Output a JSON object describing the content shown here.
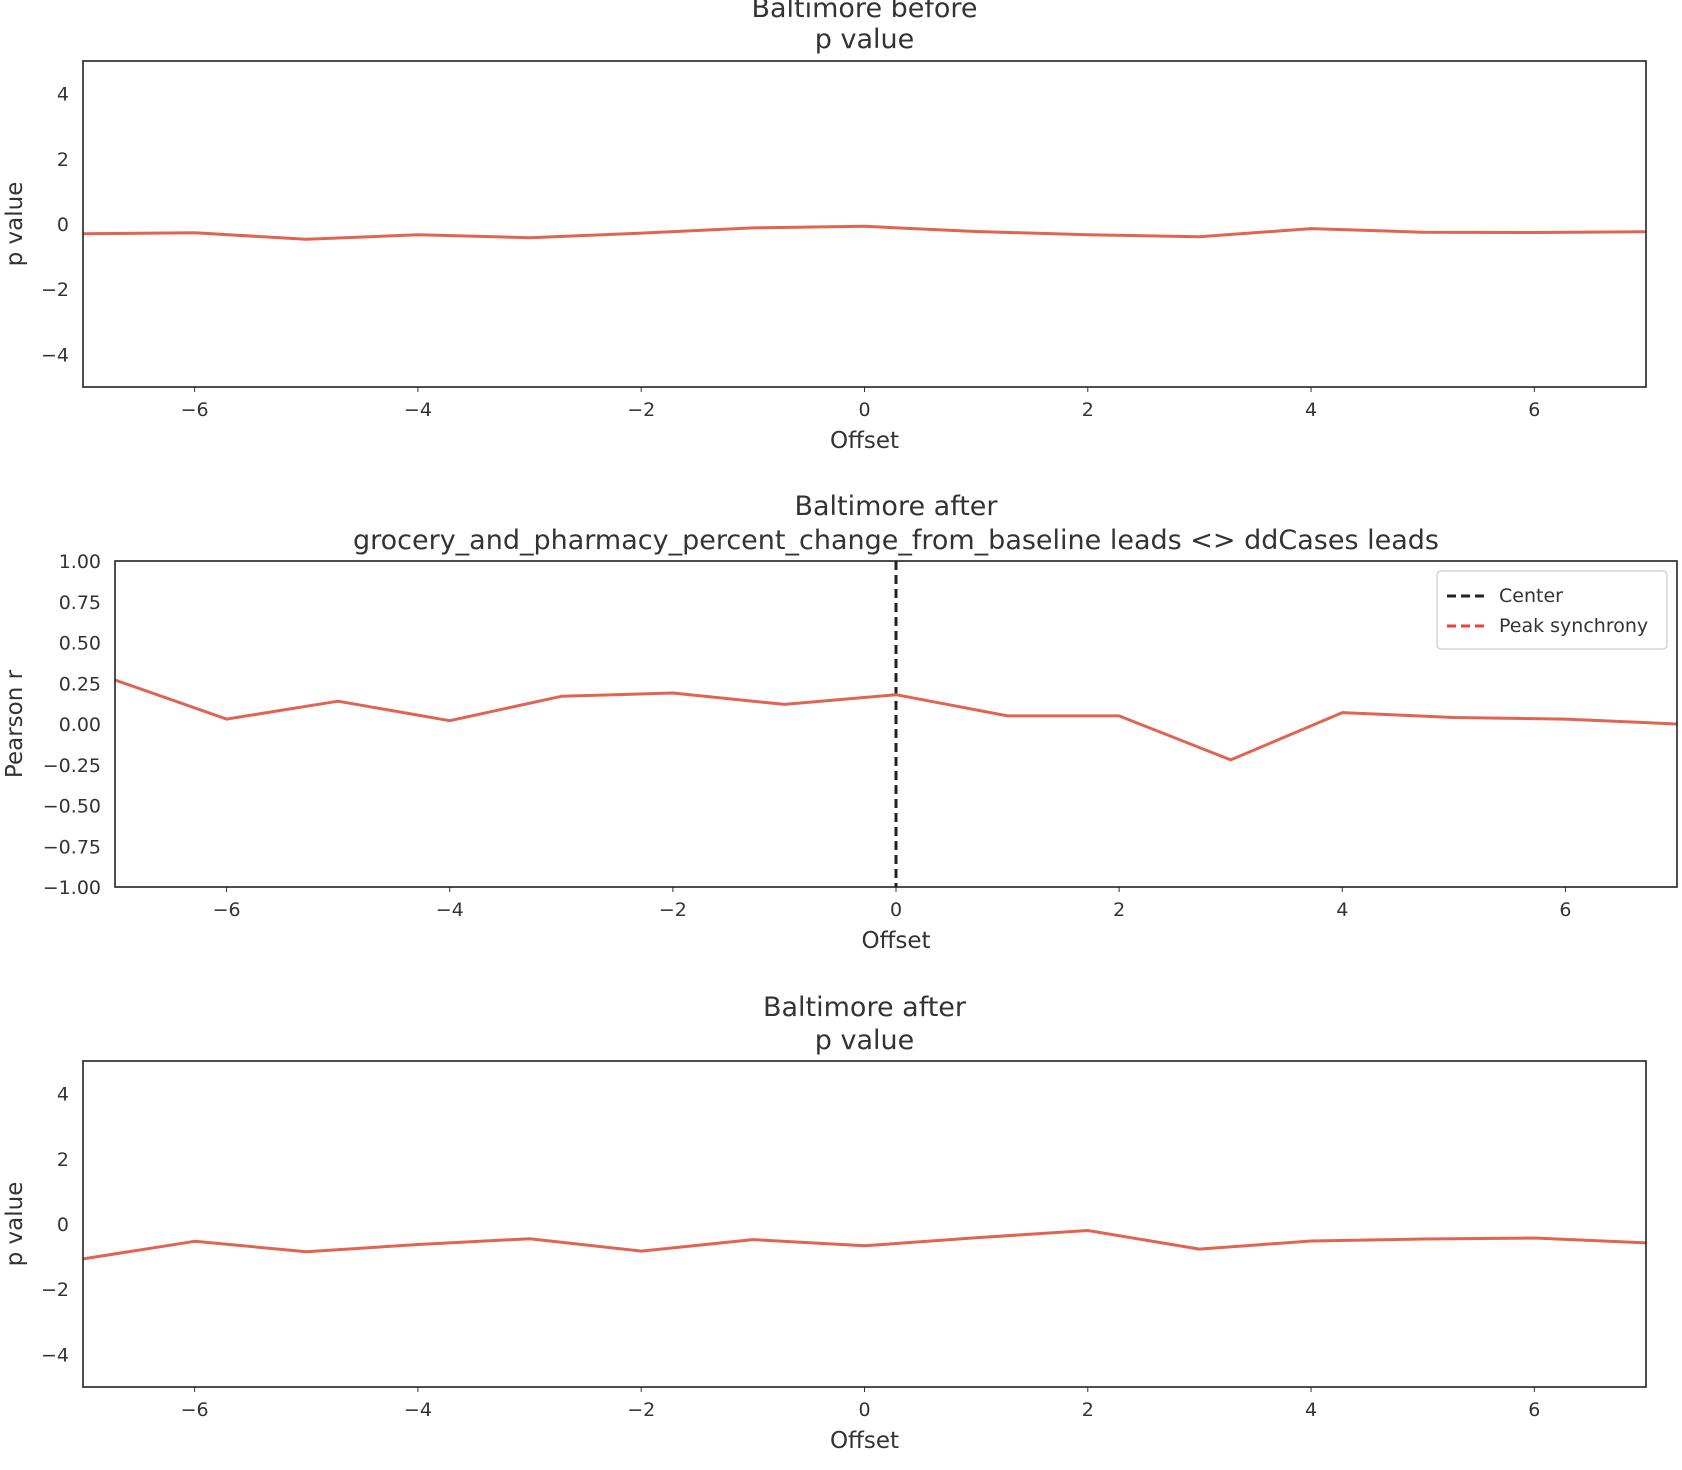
{
  "chart_data": [
    {
      "type": "line",
      "title_lines": [
        "Baltimore before",
        "p value"
      ],
      "xlabel": "Offset",
      "ylabel": "p value",
      "xlim": [
        -7,
        7
      ],
      "ylim": [
        -5,
        5
      ],
      "xticks": [
        -6,
        -4,
        -2,
        0,
        2,
        4,
        6
      ],
      "yticks": [
        -4,
        -2,
        0,
        2,
        4
      ],
      "tick_decimals": 0,
      "color": "#e06452",
      "series": [
        {
          "x": [
            -7,
            -6,
            -5,
            -4,
            -3,
            -2,
            -1,
            0,
            1,
            2,
            3,
            4,
            5,
            6,
            7
          ],
          "values": [
            -0.3,
            -0.27,
            -0.47,
            -0.33,
            -0.42,
            -0.28,
            -0.12,
            -0.07,
            -0.23,
            -0.33,
            -0.39,
            -0.14,
            -0.25,
            -0.26,
            -0.24
          ]
        }
      ],
      "legend": null,
      "center_line": null
    },
    {
      "type": "line",
      "title_lines": [
        "Baltimore after",
        "grocery_and_pharmacy_percent_change_from_baseline leads <> ddCases leads"
      ],
      "xlabel": "Offset",
      "ylabel": "Pearson r",
      "xlim": [
        -7,
        7
      ],
      "ylim": [
        -1,
        1
      ],
      "xticks": [
        -6,
        -4,
        -2,
        0,
        2,
        4,
        6
      ],
      "yticks": [
        -1.0,
        -0.75,
        -0.5,
        -0.25,
        0.0,
        0.25,
        0.5,
        0.75,
        1.0
      ],
      "tick_decimals": 2,
      "color": "#e06452",
      "series": [
        {
          "x": [
            -7,
            -6,
            -5,
            -4,
            -3,
            -2,
            -1,
            0,
            1,
            2,
            3,
            4,
            5,
            6,
            7
          ],
          "values": [
            0.27,
            0.03,
            0.14,
            0.02,
            0.17,
            0.19,
            0.12,
            0.18,
            0.05,
            0.05,
            -0.22,
            0.07,
            0.04,
            0.03,
            0.0
          ]
        }
      ],
      "center_line": {
        "x": 0,
        "color": "#222222"
      },
      "legend": {
        "placement": "top-right",
        "entries": [
          {
            "label": "Center",
            "color": "#222222"
          },
          {
            "label": "Peak synchrony",
            "color": "#e8433a"
          }
        ]
      }
    },
    {
      "type": "line",
      "title_lines": [
        "Baltimore after",
        "p value"
      ],
      "xlabel": "Offset",
      "ylabel": "p value",
      "xlim": [
        -7,
        7
      ],
      "ylim": [
        -5,
        5
      ],
      "xticks": [
        -6,
        -4,
        -2,
        0,
        2,
        4,
        6
      ],
      "yticks": [
        -4,
        -2,
        0,
        2,
        4
      ],
      "tick_decimals": 0,
      "color": "#e06452",
      "series": [
        {
          "x": [
            -7,
            -6,
            -5,
            -4,
            -3,
            -2,
            -1,
            0,
            1,
            2,
            3,
            4,
            5,
            6,
            7
          ],
          "values": [
            -1.07,
            -0.53,
            -0.85,
            -0.63,
            -0.45,
            -0.83,
            -0.48,
            -0.67,
            -0.42,
            -0.2,
            -0.77,
            -0.52,
            -0.46,
            -0.43,
            -0.58
          ]
        }
      ],
      "legend": null,
      "center_line": null
    }
  ]
}
